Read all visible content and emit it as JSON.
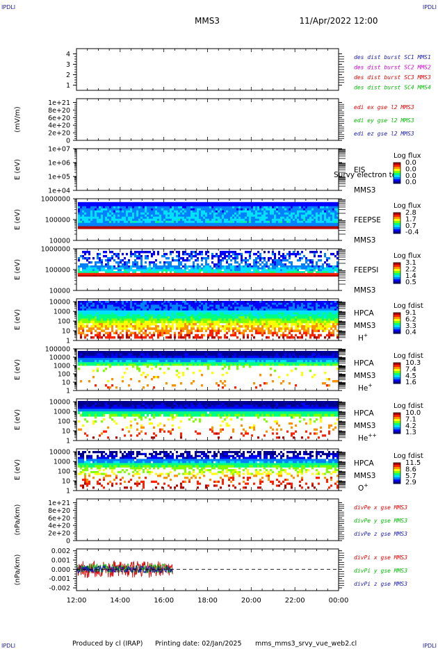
{
  "header": {
    "corner_logo": "IPDLI",
    "title": "MMS3",
    "datetime": "11/Apr/2022 12:00"
  },
  "footer": {
    "produced_by": "Produced by cl (IRAP)",
    "printing_date": "Printing date: 02/Jan/2025",
    "file_name": "mms_mms3_srvy_vue_web2.cl"
  },
  "colors": {
    "blue": "#1a1aa8",
    "magenta": "#cc00cc",
    "red": "#e00000",
    "green": "#00bb00",
    "dark_red": "#b00000",
    "spectrogram_scale": [
      "#000090",
      "#0000ff",
      "#0080ff",
      "#00e0ff",
      "#00ff80",
      "#80ff00",
      "#ffff00",
      "#ff9000",
      "#ff2000",
      "#b00000"
    ]
  },
  "chart_data": {
    "type": "multi-panel time series and spectrograms",
    "x_ticks": [
      "12:00",
      "14:00",
      "16:00",
      "18:00",
      "20:00",
      "22:00",
      "00:00"
    ],
    "xlim_hours": [
      12,
      24
    ],
    "panels": [
      {
        "id": "des-dist",
        "type": "line",
        "ylabel": "",
        "y_ticks": [
          "1",
          "2",
          "3",
          "4"
        ],
        "ylim": [
          0.5,
          4.5
        ],
        "legend": [
          {
            "label": "des dist burst SC1 MMS1",
            "color": "#1a1aa8"
          },
          {
            "label": "des dist burst SC2 MMS2",
            "color": "#cc00cc"
          },
          {
            "label": "des dist burst SC3 MMS3",
            "color": "#e00000"
          },
          {
            "label": "des dist burst SC4 MMS4",
            "color": "#00bb00"
          }
        ]
      },
      {
        "id": "edi-e",
        "type": "line",
        "ylabel": "(mV/m)",
        "y_ticks": [
          "0",
          "2e+20",
          "4e+20",
          "6e+20",
          "8e+20",
          "1e+21"
        ],
        "ylim": [
          0,
          1.1e+21
        ],
        "zero_line": true,
        "legend": [
          {
            "label": "edi ex gse l2 MMS3",
            "color": "#e00000"
          },
          {
            "label": "edi ey gse l2 MMS3",
            "color": "#00bb00"
          },
          {
            "label": "edi ez gse l2 MMS3",
            "color": "#1a1aa8"
          }
        ]
      },
      {
        "id": "eis",
        "type": "heatmap",
        "ylabel": "E (eV)",
        "y_ticks": [
          "1e+04",
          "1e+05",
          "1e+06",
          "1e+07"
        ],
        "ylim": [
          10000,
          10000000
        ],
        "labels": [
          "EIS",
          "MMS3"
        ],
        "overlay_text": "Survy electron to",
        "colorbar": {
          "title": "Log flux",
          "ticks": [
            "0.0",
            "0.0",
            "0.0",
            "0.0"
          ]
        },
        "filled": false
      },
      {
        "id": "feepse",
        "type": "heatmap",
        "ylabel": "E (eV)",
        "y_ticks": [
          "10000",
          "100000",
          "1000000"
        ],
        "ylim": [
          10000,
          1000000
        ],
        "labels": [
          "FEEPSE",
          "MMS3"
        ],
        "colorbar": {
          "title": "Log flux",
          "ticks": [
            "2.8",
            "1.7",
            "0.7",
            "-0.4"
          ]
        },
        "data_end_hour": 24
      },
      {
        "id": "feepsi",
        "type": "heatmap",
        "ylabel": "E (eV)",
        "y_ticks": [
          "10000",
          "100000",
          "1000000"
        ],
        "ylim": [
          10000,
          1000000
        ],
        "labels": [
          "FEEPSI",
          "MMS3"
        ],
        "colorbar": {
          "title": "Log flux",
          "ticks": [
            "3.1",
            "2.2",
            "1.4",
            "0.5"
          ]
        },
        "data_end_hour": 24
      },
      {
        "id": "hpca-h",
        "type": "heatmap",
        "ylabel": "E (eV)",
        "y_ticks": [
          "1",
          "10",
          "100",
          "1000",
          "10000"
        ],
        "ylim": [
          1,
          20000
        ],
        "labels": [
          "HPCA",
          "MMS3"
        ],
        "species": "H",
        "species_sup": "+",
        "colorbar": {
          "title": "Log fdist",
          "ticks": [
            "9.1",
            "6.2",
            "3.3",
            "0.4"
          ]
        },
        "data_end_hour": 24
      },
      {
        "id": "hpca-he",
        "type": "heatmap",
        "ylabel": "E (eV)",
        "y_ticks": [
          "1",
          "10",
          "100",
          "1000",
          "10000",
          "100000"
        ],
        "ylim": [
          1,
          100000
        ],
        "labels": [
          "HPCA",
          "MMS3"
        ],
        "species": "He",
        "species_sup": "+",
        "colorbar": {
          "title": "Log fdist",
          "ticks": [
            "10.3",
            "7.4",
            "4.5",
            "1.6"
          ]
        },
        "data_end_hour": 24
      },
      {
        "id": "hpca-he2",
        "type": "heatmap",
        "ylabel": "E (eV)",
        "y_ticks": [
          "1",
          "10",
          "100",
          "1000",
          "10000"
        ],
        "ylim": [
          1,
          20000
        ],
        "labels": [
          "HPCA",
          "MMS3"
        ],
        "species": "He",
        "species_sup": "++",
        "colorbar": {
          "title": "Log fdist",
          "ticks": [
            "10.0",
            "7.1",
            "4.2",
            "1.3"
          ]
        },
        "data_end_hour": 24
      },
      {
        "id": "hpca-o",
        "type": "heatmap",
        "ylabel": "E (eV)",
        "y_ticks": [
          "1",
          "10",
          "100",
          "1000",
          "10000"
        ],
        "ylim": [
          1,
          20000
        ],
        "labels": [
          "HPCA",
          "MMS3"
        ],
        "species": "O",
        "species_sup": "+",
        "colorbar": {
          "title": "Log fdist",
          "ticks": [
            "11.5",
            "8.6",
            "5.7",
            "2.9"
          ]
        },
        "data_end_hour": 24
      },
      {
        "id": "divpe",
        "type": "line",
        "ylabel": "(nPa/km)",
        "y_ticks": [
          "0",
          "2e+20",
          "4e+20",
          "6e+20",
          "8e+20",
          "1e+21"
        ],
        "ylim": [
          0,
          1.1e+21
        ],
        "zero_line": true,
        "legend": [
          {
            "label": "divPe x gse MMS3",
            "color": "#e00000"
          },
          {
            "label": "divPe y gse MMS3",
            "color": "#00bb00"
          },
          {
            "label": "divPe z gse MMS3",
            "color": "#1a1aa8"
          }
        ]
      },
      {
        "id": "divpi",
        "type": "line",
        "ylabel": "(nPa/km)",
        "y_ticks": [
          "-0.002",
          "-0.001",
          "0.000",
          "0.001",
          "0.002"
        ],
        "ylim": [
          -0.0023,
          0.0022
        ],
        "zero_line": true,
        "data_end_hour": 16.4,
        "series": [
          {
            "name": "divPi x gse MMS3",
            "color": "#e00000",
            "spread": 0.0009
          },
          {
            "name": "divPi y gse MMS3",
            "color": "#00bb00",
            "spread": 0.0005
          },
          {
            "name": "divPi z gse MMS3",
            "color": "#1a1aa8",
            "spread": 0.0004
          }
        ],
        "legend": [
          {
            "label": "divPi x gse MMS3",
            "color": "#e00000"
          },
          {
            "label": "divPi y gse MMS3",
            "color": "#00bb00"
          },
          {
            "label": "divPi z gse MMS3",
            "color": "#1a1aa8"
          }
        ]
      }
    ]
  }
}
